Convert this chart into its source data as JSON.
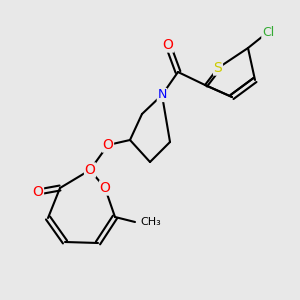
{
  "bg_color": "#e8e8e8",
  "bond_color": "#000000",
  "atom_colors": {
    "O": "#ff0000",
    "N": "#0000ff",
    "S": "#cccc00",
    "Cl": "#33aa33",
    "C": "#000000"
  },
  "font_size": 9,
  "lw": 1.5
}
